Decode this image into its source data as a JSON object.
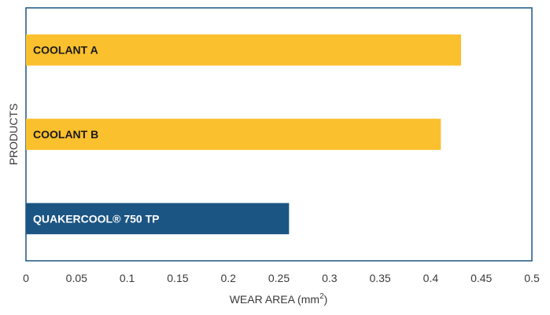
{
  "chart_data": {
    "type": "bar",
    "orientation": "horizontal",
    "title": "",
    "xlabel_main": "WEAR AREA (mm",
    "xlabel_sup": "2",
    "xlabel_close": ")",
    "ylabel": "PRODUCTS",
    "categories": [
      "COOLANT A",
      "COOLANT B",
      "QUAKERCOOL® 750 TP"
    ],
    "values": [
      0.43,
      0.41,
      0.26
    ],
    "bar_colors": [
      "#FBC02D",
      "#FBC02D",
      "#1B5583"
    ],
    "label_colors": [
      "#1a1a1a",
      "#1a1a1a",
      "#ffffff"
    ],
    "xlim": [
      0,
      0.5
    ],
    "xticks": [
      "0",
      "0.05",
      "0.1",
      "0.15",
      "0.2",
      "0.25",
      "0.3",
      "0.35",
      "0.4",
      "0.45",
      "0.5"
    ],
    "grid": false,
    "legend": "none"
  }
}
